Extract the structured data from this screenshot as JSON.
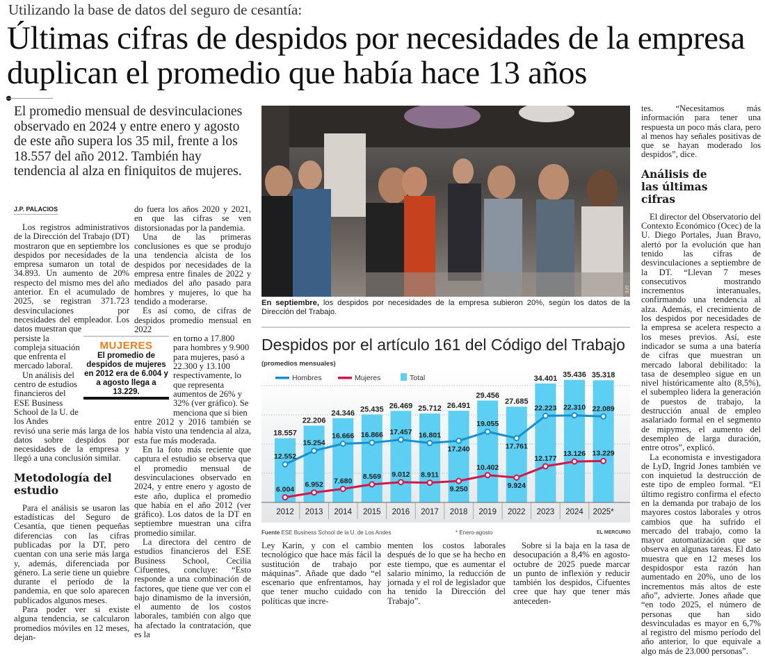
{
  "article": {
    "kicker": "Utilizando la base de datos del seguro de cesantía:",
    "headline_line1": "Últimas cifras de despidos por necesidades de la empresa",
    "headline_line2": "duplican el promedio que había hace 13 años",
    "lead": "El promedio mensual de desvinculaciones observado en 2024 y entre enero y agosto de este año supera los 35 mil, frente a los 18.557 del año 2012. También hay tendencia al alza en finiquitos de mujeres.",
    "byline": "J.P. PALACIOS"
  },
  "col1": {
    "a": "Los registros administrativos de la Dirección del Trabajo (DT) mostraron que en septiembre los despidos por necesidades de la empresa sumaron un total de 34.893. Un aumento de 20% respecto del mismo mes del año anterior. En el acumulado de 2025, se registran 371.723 desvinculaciones por necesidades del empleador. Los datos muestran que",
    "b1": "persiste la compleja situación que enfrenta el mercado laboral.",
    "b2": "Un análisis del centro de estudios financieros del ESE Business School de la U. de los Andes",
    "c": "revisó una serie más larga de los datos sobre despidos por necesidades de la empresa y llegó a una conclusión similar.",
    "heading": "Metodología del estudio",
    "d": "Para el análisis se usaron las estadísticas del Seguro de Cesantía, que tienen pequeñas diferencias con las cifras publicadas por la DT, pero cuentan con una serie más larga y, además, diferenciada por género. La serie tiene un quiebre durante el período de la pandemia, en que solo aparecen publicados algunos meses.",
    "e": "Para poder ver si existe alguna tendencia, se calcularon promedios móviles en 12 meses, dejan-"
  },
  "col2": {
    "a": "do fuera los años 2020 y 2021, en que las cifras se ven distorsionadas por la pandemia.",
    "b": "Una de las primeras conclusiones es que se produjo una tendencia alcista de los despidos por necesidades de la empresa entre finales de 2022 y mediados del año pasado para hombres y mujeres, lo que ha tendido a moderarse.",
    "c": "Es así como, de cifras de despidos promedio mensual en 2022",
    "d": "en torno a 17.800 para hombres y 9.900 para mujeres, pasó a 22.300 y 13.100 respectivamente, lo que representa aumentos de 26% y 32% (ver gráfico). Se menciona que si bien",
    "e": "entre 2012 y 2016 también se había visto una tendencia al alza, esta fue más moderada.",
    "f": "En la foto más reciente que captura el estudio se observa que el promedio mensual de desvinculaciones observado en 2024, y entre enero y agosto de este año, duplica el promedio que había en el año 2012 (ver gráfico). Los datos de la DT en septiembre muestran una cifra promedio similar.",
    "g": "La directora del centro de estudios financieros del ESE Business School, Cecilia Cifuentes, concluye: “Esto responde a una combinación de factores, que tiene que ver con el bajo dinamismo de la inversión, el aumento de los costos laborales, también con algo que ha afectado la contratación, que es la"
  },
  "callout": {
    "title": "MUJERES",
    "text": "El promedio de despidos de mujeres en 2012 era de 6.004 y a agosto llega a 13.229.",
    "title_color": "#f07c1b"
  },
  "photo": {
    "credit": "EFE",
    "caption_bold": "En septiembre,",
    "caption": " los despidos por necesidades de la empresa subieron 20%, según los datos de la Dirección del Trabajo."
  },
  "chart_data": {
    "type": "bar",
    "title": "Despidos por el artículo 161 del Código del Trabajo",
    "subtitle": "(promedios mensuales)",
    "categories": [
      "2012",
      "2013",
      "2014",
      "2015",
      "2016",
      "2017",
      "2018",
      "2019",
      "2022",
      "2023",
      "2024",
      "2025*"
    ],
    "legend_placement": "top-left",
    "grid": true,
    "series": [
      {
        "name": "Hombres",
        "kind": "line",
        "color": "#1a8fd0",
        "values": [
          12552,
          15254,
          16666,
          16866,
          17457,
          16801,
          17240,
          19055,
          17761,
          22223,
          22310,
          22089
        ],
        "labels": [
          "12.552",
          "15.254",
          "16.666",
          "16.866",
          "17.457",
          "16.801",
          "17.240",
          "19.055",
          "17.761",
          "22.223",
          "22.310",
          "22.089"
        ]
      },
      {
        "name": "Mujeres",
        "kind": "line",
        "color": "#d4164a",
        "values": [
          6004,
          6952,
          7680,
          8569,
          9012,
          8911,
          9250,
          10402,
          9924,
          12177,
          13126,
          13229
        ],
        "labels": [
          "6.004",
          "6.952",
          "7.680",
          "8.569",
          "9.012",
          "8.911",
          "9.250",
          "10.402",
          "9.924",
          "12.177",
          "13.126",
          "13.229"
        ]
      },
      {
        "name": "Total",
        "kind": "bar",
        "color": "#5ccff2",
        "values": [
          18557,
          22206,
          24346,
          25435,
          26469,
          25712,
          26491,
          29456,
          27685,
          34401,
          35436,
          35318
        ],
        "labels": [
          "18.557",
          "22.206",
          "24.346",
          "25.435",
          "26.469",
          "25.712",
          "26.491",
          "29.456",
          "27.685",
          "34.401",
          "35.436",
          "35.318"
        ]
      }
    ],
    "source_label": "Fuente",
    "source": "ESE Business School de la U. de Los Andes",
    "note": "* Enero-agosto",
    "publisher": "EL MERCURIO"
  },
  "bottom": {
    "a": "Ley Karin, y con el cambio tecnológico que hace más fácil la sustitución de trabajo por máquinas”. Añade que dado “el escenario que enfrentamos, hay que tener mucho cuidado con políticas que incre-",
    "b": "menten los costos laborales después de lo que se ha hecho en este tiempo, que es aumentar el salario mínimo, la reducción de jornada y el rol de legislador que ha tenido la Dirección del Trabajo”.",
    "c": "Sobre si la baja en la tasa de desocupación a 8,4% en agosto-octubre de 2025 puede marcar un punto de inflexión y reducir también los despidos, Cifuentes cree que hay que tener más anteceden-"
  },
  "col4": {
    "a": "tes. “Necesitamos más información para tener una respuesta un poco más clara, pero al menos hay señales positivas de que se hayan moderado los despidos”, dice.",
    "heading": "Análisis de las últimas cifras",
    "b": "El director del Observatorio del Contexto Económico (Ocec) de la U. Diego Portales, Juan Bravo, alertó por la evolución que han tenido las cifras de desvinculaciones a septiembre de la DT. “Llevan 7 meses consecutivos mostrando incrementos interanuales, confirmando una tendencia al alza. Además, el crecimiento de los despidos por necesidades de la empresa se acelera respecto a los meses previos. Así, este indicador se suma a una batería de cifras que muestran un mercado laboral debilitado: la tasa de desempleo sigue en un nivel históricamente alto (8,5%), el subempleo lidera la generación de puestos de trabajo, la destrucción anual de empleo asalariado formal en el segmento de mipymes, el aumento del desempleo de larga duración, entre otros”, explicó.",
    "c": "La economista e investigadora de LyD, Ingrid Jones también ve con inquietud la destrucción de este tipo de empleo formal. “El último registro confirma el efecto en la demanda por trabajo de los mayores costos laborales y otros cambios que ha sufrido el mercado del trabajo, como la mayor automatización que se observa en algunas tareas. El dato muestra que en 12 meses los despidospor esta razón han aumentado en 20%, uno de los incrementos más altos de este año”, advierte. Jones añade que “en todo 2025, el número de personas que han sido desvinculadas es mayor en 6,7% al registro del mismo período del año anterior, lo que equivale a algo más de 23.000 personas”."
  }
}
